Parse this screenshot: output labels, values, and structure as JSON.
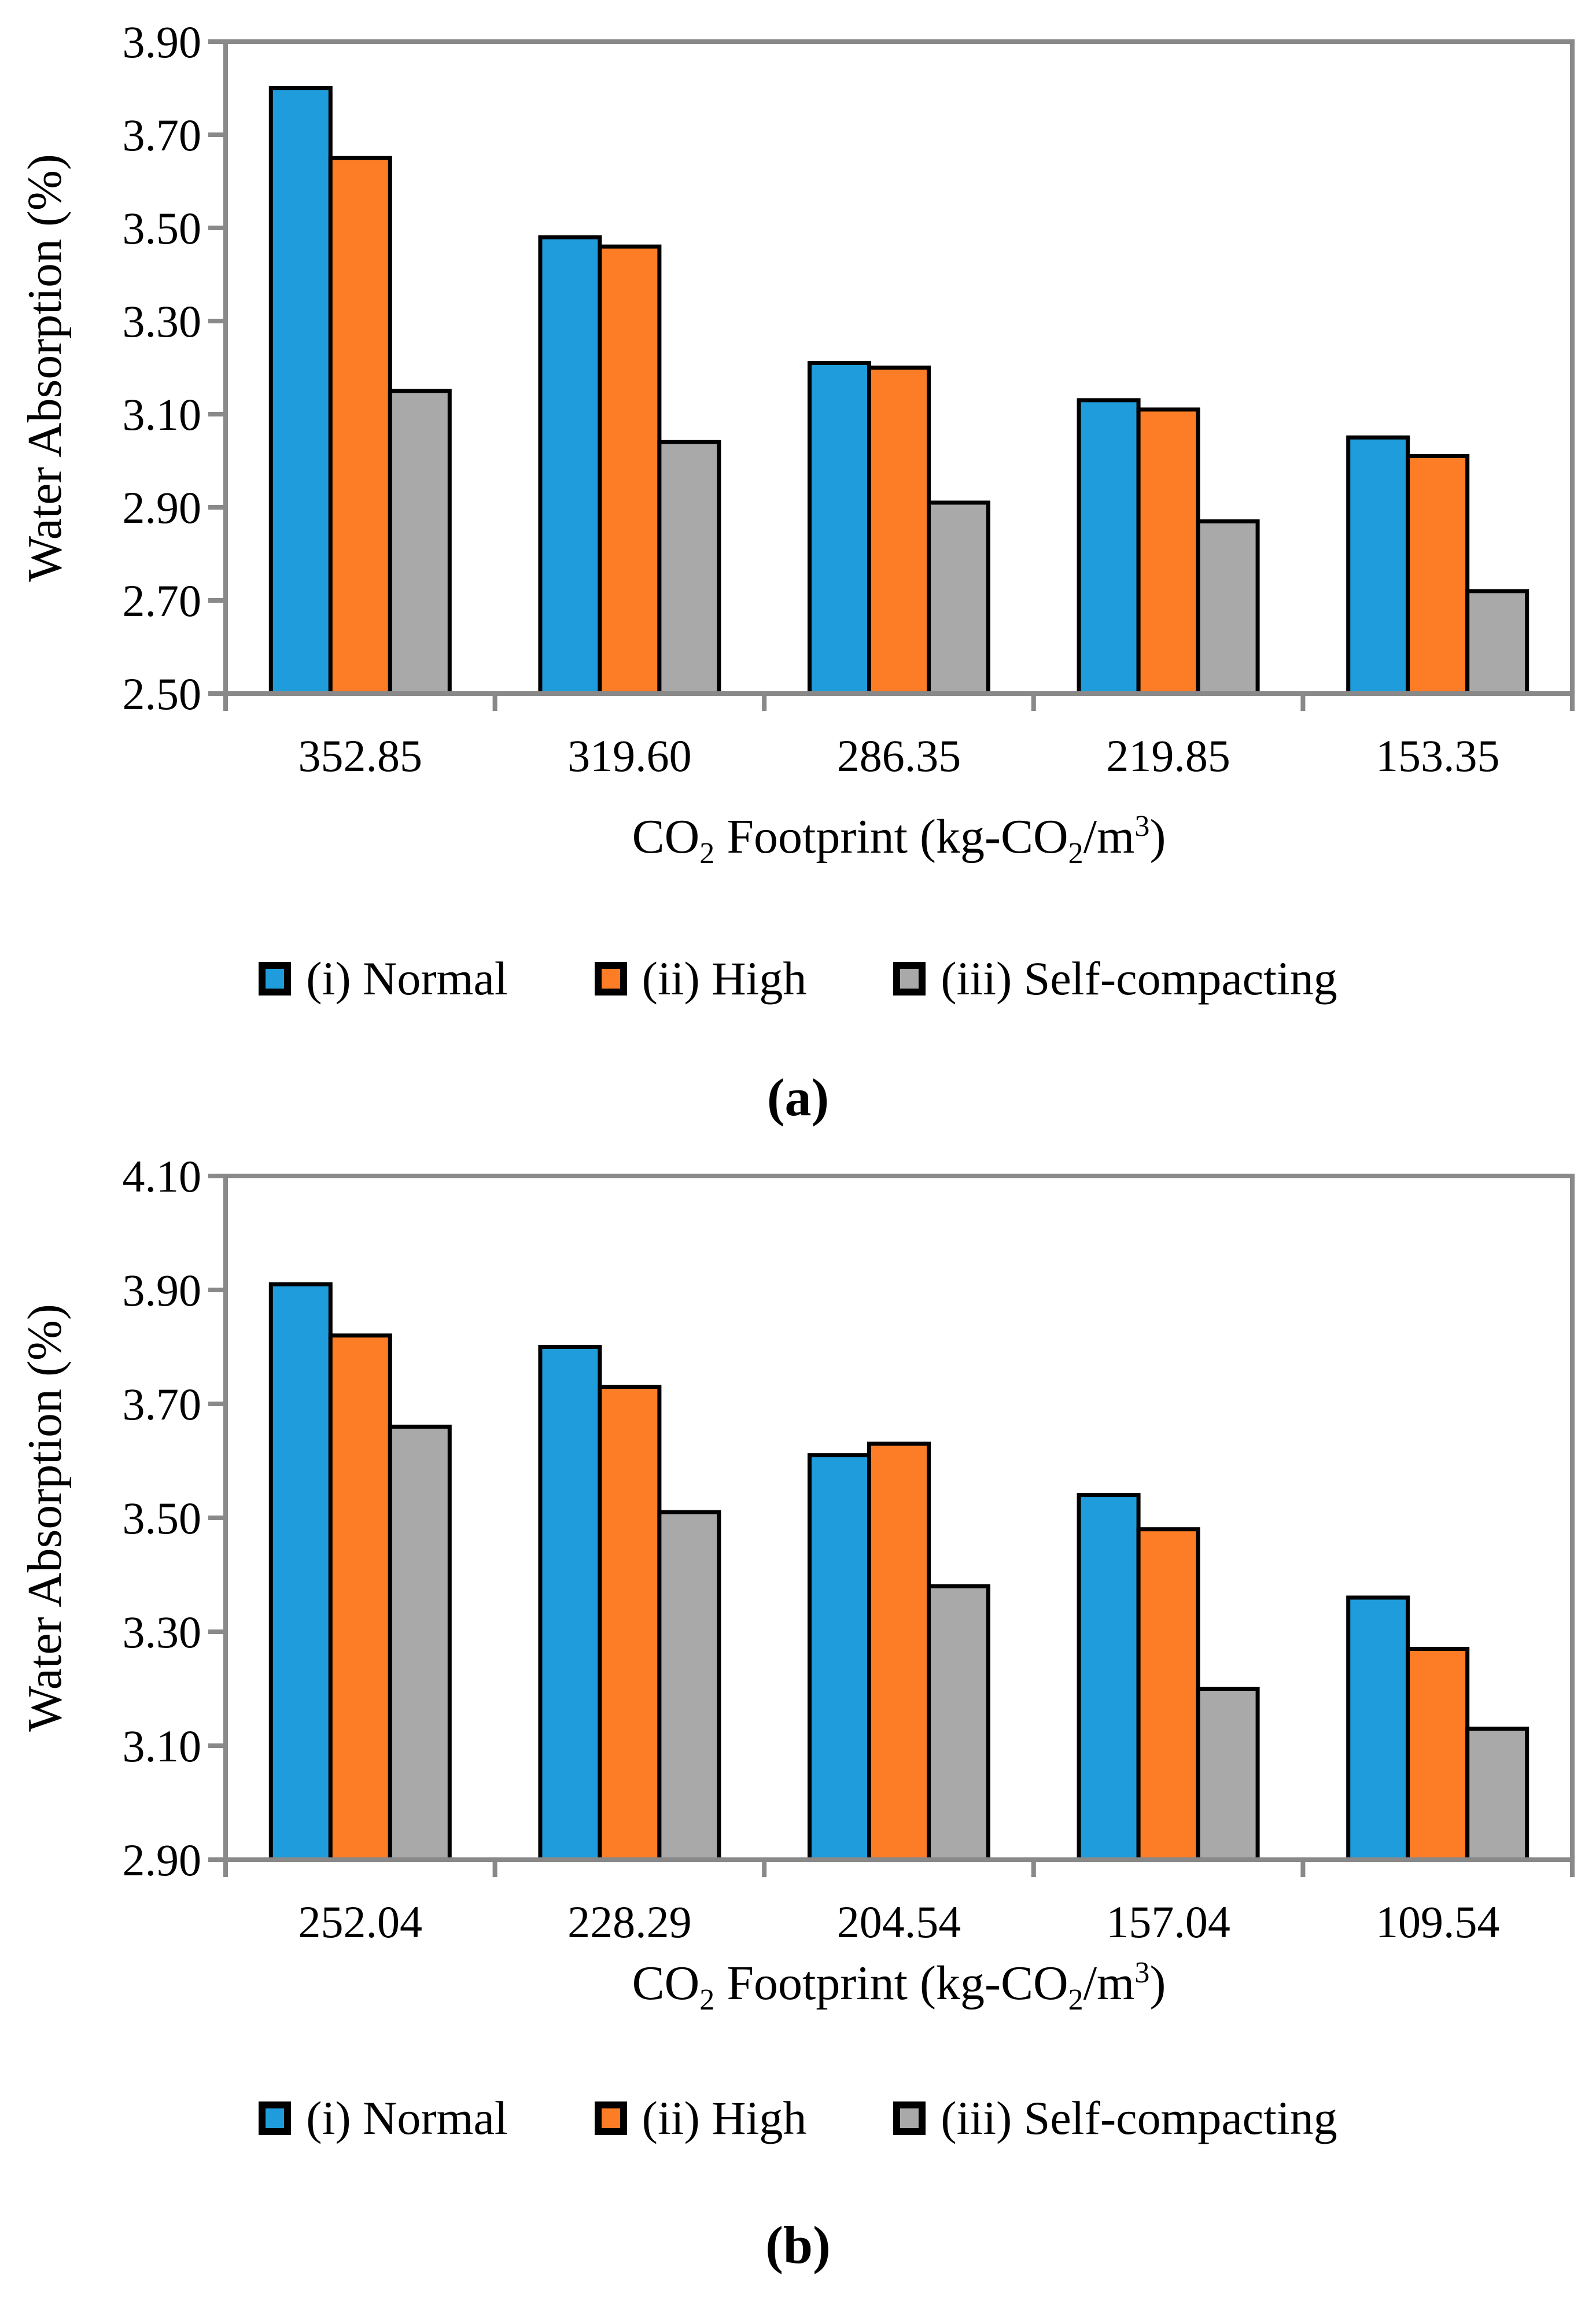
{
  "colors": {
    "normal": "#1E9CDB",
    "high": "#FC7D26",
    "self_compacting": "#A9A9A9",
    "bar_border": "#000000",
    "axis": "#898989",
    "text": "#000000",
    "background": "#FFFFFF"
  },
  "xaxis_title_parts": {
    "p1": "CO",
    "s1": "2",
    "p2": " Footprint (kg-CO",
    "s2": "2",
    "p3": "/m",
    "s3": "3",
    "p4": ")"
  },
  "chart_data": [
    {
      "type": "bar",
      "title": "",
      "caption": "(a)",
      "xlabel": "CO₂ Footprint (kg-CO₂/m³)",
      "ylabel": "Water Absorption (%)",
      "categories": [
        "352.85",
        "319.60",
        "286.35",
        "219.85",
        "153.35"
      ],
      "series": [
        {
          "name": "(i) Normal",
          "color_key": "normal",
          "values": [
            3.8,
            3.48,
            3.21,
            3.13,
            3.05
          ]
        },
        {
          "name": "(ii) High",
          "color_key": "high",
          "values": [
            3.65,
            3.46,
            3.2,
            3.11,
            3.01
          ]
        },
        {
          "name": "(iii) Self-compacting",
          "color_key": "self_compacting",
          "values": [
            3.15,
            3.04,
            2.91,
            2.87,
            2.72
          ]
        }
      ],
      "ylim": [
        2.5,
        3.9
      ],
      "ytick_step": 0.2,
      "yticks": [
        "3.90",
        "3.70",
        "3.50",
        "3.30",
        "3.10",
        "2.90",
        "2.70",
        "2.50"
      ],
      "grid": false,
      "legend_position": "bottom"
    },
    {
      "type": "bar",
      "title": "",
      "caption": "(b)",
      "xlabel": "CO₂ Footprint (kg-CO₂/m³)",
      "ylabel": "Water Absorption (%)",
      "categories": [
        "252.04",
        "228.29",
        "204.54",
        "157.04",
        "109.54"
      ],
      "series": [
        {
          "name": "(i) Normal",
          "color_key": "normal",
          "values": [
            3.91,
            3.8,
            3.61,
            3.54,
            3.36
          ]
        },
        {
          "name": "(ii) High",
          "color_key": "high",
          "values": [
            3.82,
            3.73,
            3.63,
            3.48,
            3.27
          ]
        },
        {
          "name": "(iii) Self-compacting",
          "color_key": "self_compacting",
          "values": [
            3.66,
            3.51,
            3.38,
            3.2,
            3.13
          ]
        }
      ],
      "ylim": [
        2.9,
        4.1
      ],
      "ytick_step": 0.2,
      "yticks": [
        "4.10",
        "3.90",
        "3.70",
        "3.50",
        "3.30",
        "3.10",
        "2.90"
      ],
      "grid": false,
      "legend_position": "bottom"
    }
  ]
}
